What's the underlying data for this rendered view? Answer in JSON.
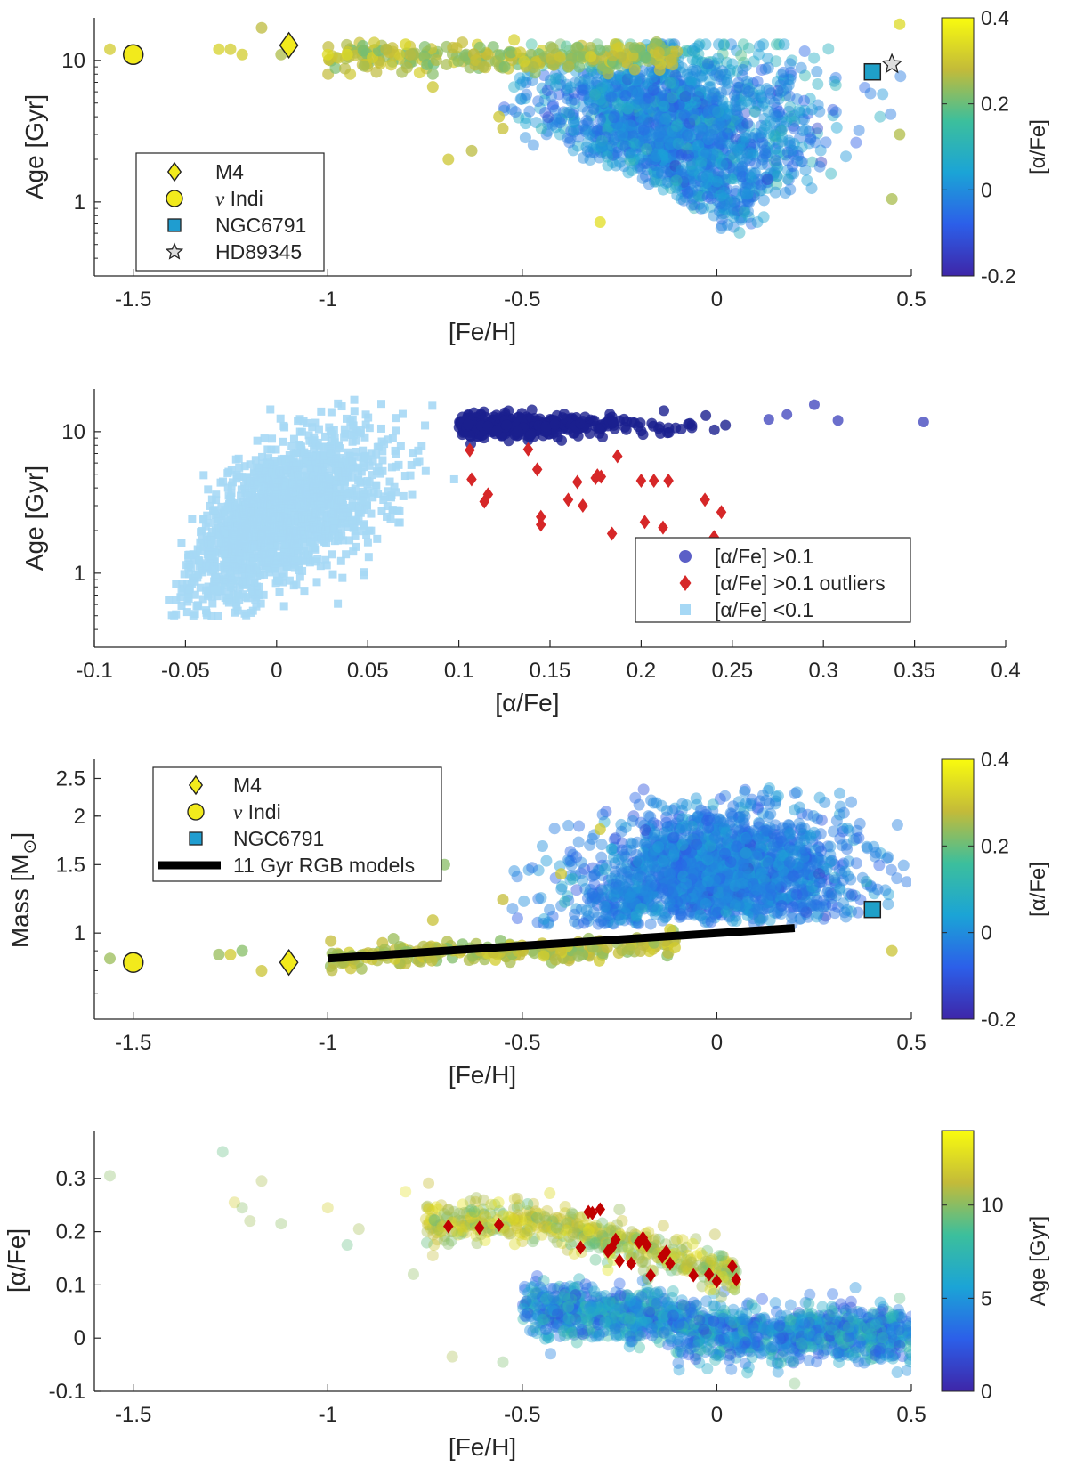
{
  "chart_data": [
    {
      "type": "scatter",
      "xlabel": "[Fe/H]",
      "ylabel": "Age [Gyr]",
      "xlim": [
        -1.6,
        0.5
      ],
      "ylim": [
        0.3,
        20
      ],
      "ylog": true,
      "xticks": [
        "-1.5",
        "-1",
        "-0.5",
        "0",
        "0.5"
      ],
      "yticks": [
        "1",
        "10"
      ],
      "color_by": "[α/Fe]",
      "colorbar": {
        "label": "[α/Fe]",
        "range": [
          -0.2,
          0.4
        ],
        "ticks": [
          "-0.2",
          "0",
          "0.2",
          "0.4"
        ]
      },
      "legend": {
        "position": "bottom-left",
        "entries": [
          {
            "marker": "diamond",
            "color": "#f2ea1c",
            "text": "M4"
          },
          {
            "marker": "circle",
            "color": "#f2ea1c",
            "text_prefix": "ν",
            "text": " Indi"
          },
          {
            "marker": "square",
            "color": "#1f9dd0",
            "text": "NGC6791"
          },
          {
            "marker": "star",
            "color": "#dddddd",
            "text": "HD89345"
          }
        ]
      },
      "highlighted": [
        {
          "name": "M4",
          "x": -1.1,
          "y": 12.8,
          "marker": "diamond"
        },
        {
          "name": "ν Indi",
          "x": -1.5,
          "y": 11.0,
          "marker": "circle"
        },
        {
          "name": "NGC6791",
          "x": 0.4,
          "y": 8.3,
          "marker": "square"
        },
        {
          "name": "HD89345",
          "x": 0.45,
          "y": 9.4,
          "marker": "star"
        }
      ],
      "points_summary": "≈3000 field stars; α-rich tail at [Fe/H] < -0.5 with ages ≈ 9–15 Gyr, main cloud at [Fe/H] -0.5 to 0.5 with ages ≈ 0.5–15 Gyr"
    },
    {
      "type": "scatter",
      "xlabel": "[α/Fe]",
      "ylabel": "Age [Gyr]",
      "xlim": [
        -0.1,
        0.4
      ],
      "ylim": [
        0.3,
        20
      ],
      "ylog": true,
      "xticks": [
        "-0.1",
        "-0.05",
        "0",
        "0.05",
        "0.1",
        "0.15",
        "0.2",
        "0.25",
        "0.3",
        "0.35",
        "0.4"
      ],
      "yticks": [
        "1",
        "10"
      ],
      "legend": {
        "position": "bottom-right",
        "entries": [
          {
            "marker": "circle",
            "color": "#1a1f8f",
            "text": "[α/Fe] >0.1"
          },
          {
            "marker": "diamond",
            "color": "#d62728",
            "text": "[α/Fe] >0.1 outliers"
          },
          {
            "marker": "square",
            "color": "#a6d8f5",
            "text": "[α/Fe] <0.1"
          }
        ]
      },
      "series": [
        {
          "name": "[α/Fe] >0.1",
          "summary": "ages ≈ 8–16 Gyr, [α/Fe] 0.1–0.36"
        },
        {
          "name": "[α/Fe] >0.1 outliers",
          "x": [
            0.106,
            0.107,
            0.114,
            0.116,
            0.138,
            0.143,
            0.145,
            0.145,
            0.16,
            0.165,
            0.168,
            0.175,
            0.176,
            0.178,
            0.184,
            0.187,
            0.2,
            0.202,
            0.207,
            0.212,
            0.215,
            0.235,
            0.24,
            0.244
          ],
          "y": [
            7.4,
            4.6,
            3.2,
            3.6,
            7.5,
            5.4,
            2.5,
            2.2,
            3.3,
            4.4,
            3.0,
            4.7,
            4.9,
            4.8,
            1.9,
            6.7,
            4.5,
            2.3,
            4.5,
            2.1,
            4.5,
            3.3,
            1.8,
            2.7
          ]
        },
        {
          "name": "[α/Fe] <0.1",
          "summary": "ages ≈ 0.5–17 Gyr, [α/Fe] -0.09 to 0.1"
        }
      ]
    },
    {
      "type": "scatter",
      "xlabel": "[Fe/H]",
      "ylabel_main": "Mass [M",
      "ylabel_sub": "⊙",
      "ylabel_close": "]",
      "xlim": [
        -1.6,
        0.5
      ],
      "ylim": [
        0.6,
        2.8
      ],
      "ylog": true,
      "xticks": [
        "-1.5",
        "-1",
        "-0.5",
        "0",
        "0.5"
      ],
      "yticks": [
        "1",
        "1.5",
        "2",
        "2.5"
      ],
      "color_by": "[α/Fe]",
      "colorbar": {
        "label": "[α/Fe]",
        "range": [
          -0.2,
          0.4
        ],
        "ticks": [
          "-0.2",
          "0",
          "0.2",
          "0.4"
        ]
      },
      "legend": {
        "position": "top-left",
        "entries": [
          {
            "marker": "diamond",
            "color": "#f2ea1c",
            "text": "M4"
          },
          {
            "marker": "circle",
            "color": "#f2ea1c",
            "text_prefix": "ν",
            "text": " Indi"
          },
          {
            "marker": "square",
            "color": "#1f9dd0",
            "text": "NGC6791"
          },
          {
            "marker": "line",
            "color": "#000000",
            "text": "11 Gyr RGB models"
          }
        ]
      },
      "model_line": {
        "name": "11 Gyr RGB models",
        "x": [
          -1.0,
          0.2
        ],
        "y": [
          0.86,
          1.03
        ]
      },
      "highlighted": [
        {
          "name": "M4",
          "x": -1.1,
          "y": 0.84,
          "marker": "diamond"
        },
        {
          "name": "ν Indi",
          "x": -1.5,
          "y": 0.84,
          "marker": "circle"
        },
        {
          "name": "NGC6791",
          "x": 0.4,
          "y": 1.15,
          "marker": "square"
        }
      ],
      "points_summary": "≈3000 field stars; masses ≈ 0.8–2.7 M⊙"
    },
    {
      "type": "scatter",
      "xlabel": "[Fe/H]",
      "ylabel": "[α/Fe]",
      "xlim": [
        -1.6,
        0.5
      ],
      "ylim": [
        -0.1,
        0.39
      ],
      "xticks": [
        "-1.5",
        "-1",
        "-0.5",
        "0",
        "0.5"
      ],
      "yticks": [
        "-0.1",
        "0",
        "0.1",
        "0.2",
        "0.3"
      ],
      "color_by": "Age [Gyr]",
      "colorbar": {
        "label": "Age [Gyr]",
        "range": [
          0,
          14
        ],
        "ticks": [
          "0",
          "5",
          "10"
        ]
      },
      "outliers": {
        "marker": "diamond",
        "color": "#c00000",
        "x": [
          -0.69,
          -0.61,
          -0.56,
          -0.35,
          -0.33,
          -0.3,
          -0.28,
          -0.26,
          -0.25,
          -0.2,
          -0.19,
          -0.18,
          -0.17,
          -0.14,
          -0.13,
          -0.12,
          -0.06,
          -0.02,
          0.0,
          0.04,
          0.05,
          -0.27,
          -0.32,
          -0.22
        ],
        "y": [
          0.21,
          0.207,
          0.213,
          0.17,
          0.237,
          0.242,
          0.163,
          0.185,
          0.145,
          0.18,
          0.188,
          0.175,
          0.118,
          0.153,
          0.162,
          0.14,
          0.118,
          0.12,
          0.107,
          0.135,
          0.11,
          0.17,
          0.235,
          0.14
        ]
      },
      "points_summary": "≈3000 stars colored by age; high-α sequence ≈0.15–0.25, low-α sequence ≈ -0.05–0.08"
    }
  ]
}
